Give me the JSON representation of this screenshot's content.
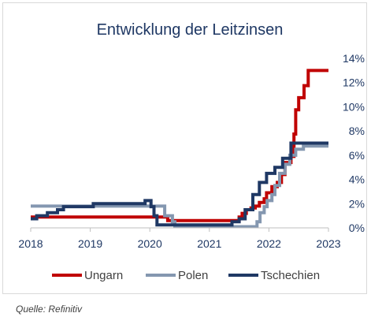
{
  "chart_data": {
    "type": "line",
    "title": "Entwicklung der Leitzinsen",
    "x_ticks": [
      "2018",
      "2019",
      "2020",
      "2021",
      "2022",
      "2023"
    ],
    "xlim": [
      2018,
      2023
    ],
    "ylim": [
      0,
      14
    ],
    "y_ticks": [
      0,
      2,
      4,
      6,
      8,
      10,
      12,
      14
    ],
    "y_tick_labels": [
      "0%",
      "2%",
      "4%",
      "6%",
      "8%",
      "10%",
      "12%",
      "14%"
    ],
    "y_axis_side": "right",
    "grid": false,
    "legend_position": "bottom",
    "series": [
      {
        "name": "Ungarn",
        "color": "#c00000",
        "step": true,
        "points": [
          [
            2018.0,
            0.9
          ],
          [
            2020.2,
            0.9
          ],
          [
            2020.3,
            0.6
          ],
          [
            2021.45,
            0.6
          ],
          [
            2021.5,
            0.9
          ],
          [
            2021.55,
            1.2
          ],
          [
            2021.62,
            1.5
          ],
          [
            2021.7,
            1.65
          ],
          [
            2021.77,
            1.8
          ],
          [
            2021.84,
            2.1
          ],
          [
            2021.92,
            2.4
          ],
          [
            2021.96,
            2.9
          ],
          [
            2022.05,
            3.4
          ],
          [
            2022.1,
            3.4
          ],
          [
            2022.14,
            3.75
          ],
          [
            2022.21,
            4.4
          ],
          [
            2022.27,
            5.4
          ],
          [
            2022.37,
            5.9
          ],
          [
            2022.42,
            7.75
          ],
          [
            2022.45,
            9.75
          ],
          [
            2022.5,
            10.75
          ],
          [
            2022.59,
            11.75
          ],
          [
            2022.66,
            13.0
          ],
          [
            2023.0,
            13.0
          ]
        ]
      },
      {
        "name": "Polen",
        "color": "#8497b0",
        "step": true,
        "points": [
          [
            2018.0,
            1.8
          ],
          [
            2020.2,
            1.8
          ],
          [
            2020.25,
            1.0
          ],
          [
            2020.38,
            0.5
          ],
          [
            2020.42,
            0.1
          ],
          [
            2021.75,
            0.1
          ],
          [
            2021.8,
            0.5
          ],
          [
            2021.85,
            1.25
          ],
          [
            2021.92,
            1.75
          ],
          [
            2021.97,
            2.25
          ],
          [
            2022.05,
            2.75
          ],
          [
            2022.1,
            3.5
          ],
          [
            2022.18,
            4.5
          ],
          [
            2022.27,
            5.25
          ],
          [
            2022.35,
            6.0
          ],
          [
            2022.45,
            6.5
          ],
          [
            2022.58,
            6.75
          ],
          [
            2022.7,
            6.75
          ],
          [
            2023.0,
            6.75
          ]
        ]
      },
      {
        "name": "Tschechien",
        "color": "#1f3864",
        "step": true,
        "points": [
          [
            2018.0,
            0.75
          ],
          [
            2018.1,
            1.0
          ],
          [
            2018.28,
            1.25
          ],
          [
            2018.45,
            1.5
          ],
          [
            2018.55,
            1.75
          ],
          [
            2019.05,
            2.0
          ],
          [
            2019.92,
            2.25
          ],
          [
            2020.02,
            1.75
          ],
          [
            2020.07,
            1.0
          ],
          [
            2020.12,
            0.25
          ],
          [
            2021.38,
            0.5
          ],
          [
            2021.5,
            0.75
          ],
          [
            2021.6,
            1.5
          ],
          [
            2021.73,
            2.75
          ],
          [
            2021.84,
            3.75
          ],
          [
            2021.96,
            4.5
          ],
          [
            2022.1,
            5.0
          ],
          [
            2022.23,
            5.75
          ],
          [
            2022.37,
            7.0
          ],
          [
            2023.0,
            7.0
          ]
        ]
      }
    ]
  },
  "footer": {
    "source": "Quelle: Refinitiv"
  }
}
